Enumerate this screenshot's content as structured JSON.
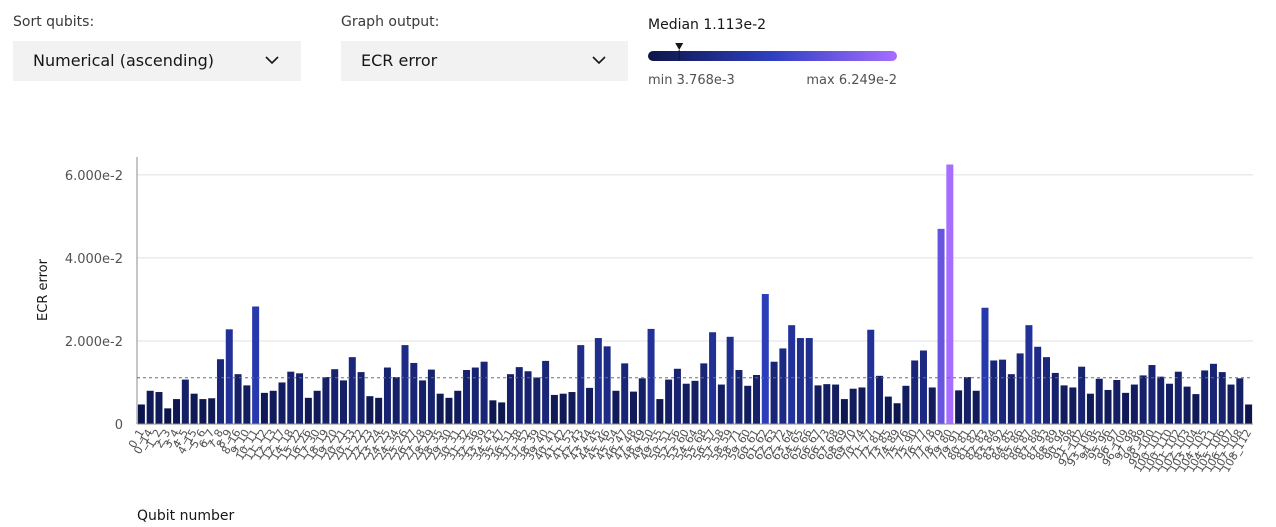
{
  "controls": {
    "sort": {
      "label": "Sort qubits:",
      "value": "Numerical (ascending)"
    },
    "output": {
      "label": "Graph output:",
      "value": "ECR error"
    }
  },
  "chart_data": {
    "type": "bar",
    "ylabel": "ECR error",
    "xlabel": "Qubit number",
    "colorscale": [
      "#0c1548",
      "#2e40c2",
      "#a66dff"
    ],
    "legend": {
      "median": {
        "label": "Median",
        "value": 0.01113,
        "value_label": "1.113e-2"
      },
      "min": {
        "label": "min",
        "value": 0.003768,
        "value_label": "3.768e-3"
      },
      "max": {
        "label": "max",
        "value": 0.06249,
        "value_label": "6.249e-2"
      }
    },
    "ylim": [
      0,
      0.0643
    ],
    "yticks": [
      0,
      {
        "value": 0.02,
        "label": "2.000e-2"
      },
      {
        "value": 0.04,
        "label": "4.000e-2"
      },
      {
        "value": 0.06,
        "label": "6.000e-2"
      }
    ],
    "grid": true,
    "categories": [
      "0_1",
      "0_14",
      "1_2",
      "2_3",
      "3_4",
      "4_5",
      "4_15",
      "5_6",
      "6_7",
      "7_8",
      "8_9",
      "8_16",
      "9_10",
      "10_11",
      "11_12",
      "12_13",
      "12_17",
      "14_18",
      "15_22",
      "16_26",
      "17_30",
      "18_19",
      "19_20",
      "20_21",
      "20_33",
      "21_22",
      "22_23",
      "23_24",
      "24_25",
      "24_34",
      "25_26",
      "26_27",
      "27_28",
      "28_29",
      "28_35",
      "29_30",
      "30_31",
      "31_32",
      "32_36",
      "33_39",
      "34_43",
      "35_47",
      "36_51",
      "37_38",
      "37_52",
      "38_39",
      "39_40",
      "40_41",
      "41_42",
      "41_53",
      "42_43",
      "43_44",
      "44_45",
      "45_46",
      "45_54",
      "46_47",
      "47_48",
      "48_49",
      "49_50",
      "49_55",
      "50_51",
      "52_56",
      "53_60",
      "54_64",
      "55_68",
      "56_57",
      "57_58",
      "58_59",
      "58_71",
      "59_60",
      "60_61",
      "61_62",
      "62_63",
      "62_72",
      "63_64",
      "64_65",
      "65_66",
      "66_67",
      "66_73",
      "67_68",
      "68_69",
      "69_70",
      "70_74",
      "71_77",
      "72_81",
      "73_85",
      "74_89",
      "75_76",
      "75_90",
      "76_77",
      "77_78",
      "78_79",
      "79_80",
      "79_91",
      "80_81",
      "81_82",
      "82_83",
      "83_84",
      "83_92",
      "84_85",
      "85_86",
      "86_87",
      "87_88",
      "87_93",
      "88_89",
      "90_94",
      "91_98",
      "92_102",
      "93_106",
      "94_95",
      "95_96",
      "96_97",
      "96_109",
      "97_98",
      "98_99",
      "99_100",
      "100_101",
      "100_110",
      "101_102",
      "102_103",
      "103_104",
      "104_105",
      "104_111",
      "105_106",
      "106_107",
      "107_108",
      "108_112"
    ],
    "values": [
      0.0047,
      0.008,
      0.0077,
      0.003768,
      0.006,
      0.0107,
      0.0073,
      0.006,
      0.0062,
      0.0156,
      0.0228,
      0.012,
      0.0093,
      0.0283,
      0.0075,
      0.008,
      0.01,
      0.0126,
      0.0122,
      0.0063,
      0.008,
      0.0113,
      0.0132,
      0.0105,
      0.0161,
      0.0125,
      0.0067,
      0.0063,
      0.0136,
      0.0113,
      0.019,
      0.0147,
      0.0105,
      0.0131,
      0.0073,
      0.0063,
      0.008,
      0.013,
      0.0136,
      0.015,
      0.0057,
      0.0052,
      0.012,
      0.0137,
      0.0127,
      0.0112,
      0.0152,
      0.007,
      0.0073,
      0.0077,
      0.019,
      0.0087,
      0.0207,
      0.0187,
      0.008,
      0.0146,
      0.0078,
      0.011,
      0.0229,
      0.006,
      0.0107,
      0.0133,
      0.0097,
      0.0104,
      0.0146,
      0.0221,
      0.0095,
      0.021,
      0.013,
      0.0092,
      0.0118,
      0.0313,
      0.015,
      0.0182,
      0.0238,
      0.0207,
      0.0207,
      0.0093,
      0.0096,
      0.0095,
      0.006,
      0.0085,
      0.0088,
      0.0227,
      0.0116,
      0.0066,
      0.005,
      0.0092,
      0.0153,
      0.0177,
      0.0088,
      0.047,
      0.06249,
      0.0081,
      0.0113,
      0.008,
      0.028,
      0.0153,
      0.0155,
      0.012,
      0.017,
      0.0238,
      0.0186,
      0.0161,
      0.0123,
      0.0093,
      0.0088,
      0.0138,
      0.0073,
      0.0109,
      0.0082,
      0.0106,
      0.0075,
      0.0095,
      0.0117,
      0.0142,
      0.0114,
      0.0097,
      0.0126,
      0.009,
      0.0072,
      0.0129,
      0.0145,
      0.0125,
      0.0095,
      0.011,
      0.0047
    ]
  }
}
